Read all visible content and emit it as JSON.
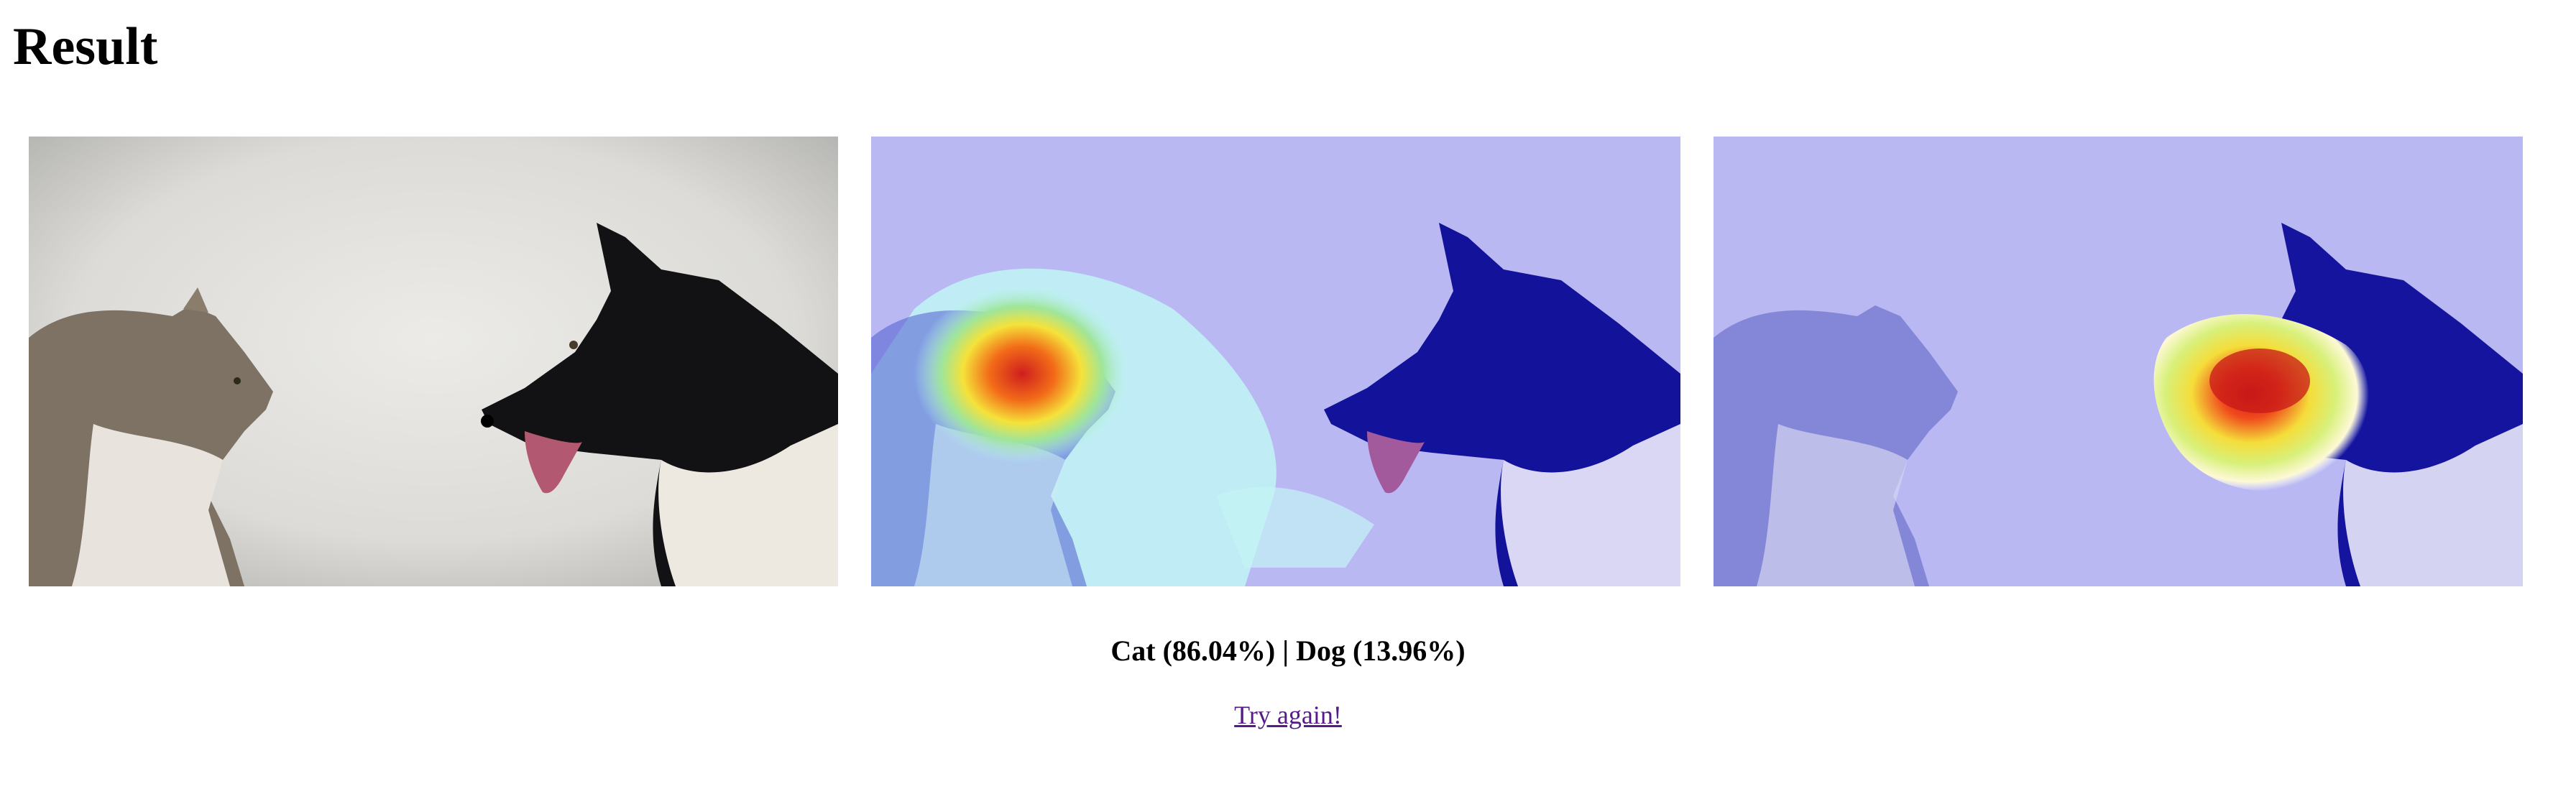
{
  "page": {
    "title": "Result"
  },
  "images": [
    {
      "name": "original",
      "overlay": "none"
    },
    {
      "name": "cat-heatmap",
      "overlay": "heatmap",
      "focus": "cat"
    },
    {
      "name": "dog-heatmap",
      "overlay": "heatmap",
      "focus": "dog"
    }
  ],
  "prediction": {
    "text": "Cat (86.04%) | Dog (13.96%)",
    "classes": [
      {
        "label": "Cat",
        "probability": 86.04
      },
      {
        "label": "Dog",
        "probability": 13.96
      }
    ]
  },
  "actions": {
    "try_again_label": "Try again!"
  },
  "colors": {
    "link": "#551a8b",
    "heatmap_base": "#8a8cf0",
    "heatmap_hot": "#d92020"
  }
}
